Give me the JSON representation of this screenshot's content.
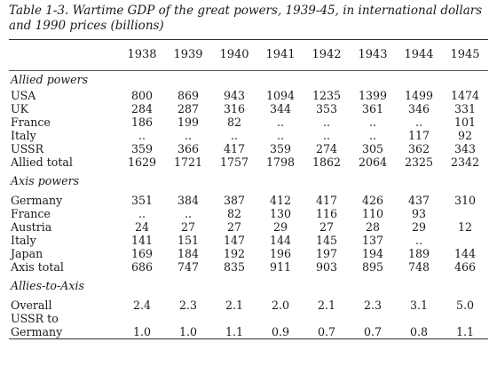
{
  "caption": "Table 1-3. Wartime GDP of the great powers, 1939-45, in international dollars and 1990 prices (billions)",
  "years": [
    "1938",
    "1939",
    "1940",
    "1941",
    "1942",
    "1943",
    "1944",
    "1945"
  ],
  "sections": [
    {
      "title": "Allied powers",
      "rows": [
        {
          "label": "USA",
          "values": [
            "800",
            "869",
            "943",
            "1094",
            "1235",
            "1399",
            "1499",
            "1474"
          ]
        },
        {
          "label": "UK",
          "values": [
            "284",
            "287",
            "316",
            "344",
            "353",
            "361",
            "346",
            "331"
          ]
        },
        {
          "label": "France",
          "values": [
            "186",
            "199",
            "82",
            "..",
            "..",
            "..",
            "..",
            "101"
          ]
        },
        {
          "label": "Italy",
          "values": [
            "..",
            "..",
            "..",
            "..",
            "..",
            "..",
            "117",
            "92"
          ]
        },
        {
          "label": "USSR",
          "values": [
            "359",
            "366",
            "417",
            "359",
            "274",
            "305",
            "362",
            "343"
          ]
        },
        {
          "label": "Allied total",
          "values": [
            "1629",
            "1721",
            "1757",
            "1798",
            "1862",
            "2064",
            "2325",
            "2342"
          ]
        }
      ]
    },
    {
      "title": "Axis powers",
      "rows": [
        {
          "label": "Germany",
          "values": [
            "351",
            "384",
            "387",
            "412",
            "417",
            "426",
            "437",
            "310"
          ]
        },
        {
          "label": "France",
          "values": [
            "..",
            "..",
            "82",
            "130",
            "116",
            "110",
            "93",
            ""
          ]
        },
        {
          "label": "Austria",
          "values": [
            "24",
            "27",
            "27",
            "29",
            "27",
            "28",
            "29",
            "12"
          ]
        },
        {
          "label": "Italy",
          "values": [
            "141",
            "151",
            "147",
            "144",
            "145",
            "137",
            "..",
            ""
          ]
        },
        {
          "label": "Japan",
          "values": [
            "169",
            "184",
            "192",
            "196",
            "197",
            "194",
            "189",
            "144"
          ]
        },
        {
          "label": "Axis total",
          "values": [
            "686",
            "747",
            "835",
            "911",
            "903",
            "895",
            "748",
            "466"
          ]
        }
      ]
    },
    {
      "title": "Allies-to-Axis",
      "rows": [
        {
          "label": "Overall",
          "values": [
            "2.4",
            "2.3",
            "2.1",
            "2.0",
            "2.1",
            "2.3",
            "3.1",
            "5.0"
          ]
        },
        {
          "label": "USSR to",
          "values": [
            "",
            "",
            "",
            "",
            "",
            "",
            "",
            ""
          ]
        },
        {
          "label": "Germany",
          "values": [
            "1.0",
            "1.0",
            "1.1",
            "0.9",
            "0.7",
            "0.7",
            "0.8",
            "1.1"
          ]
        }
      ]
    }
  ]
}
